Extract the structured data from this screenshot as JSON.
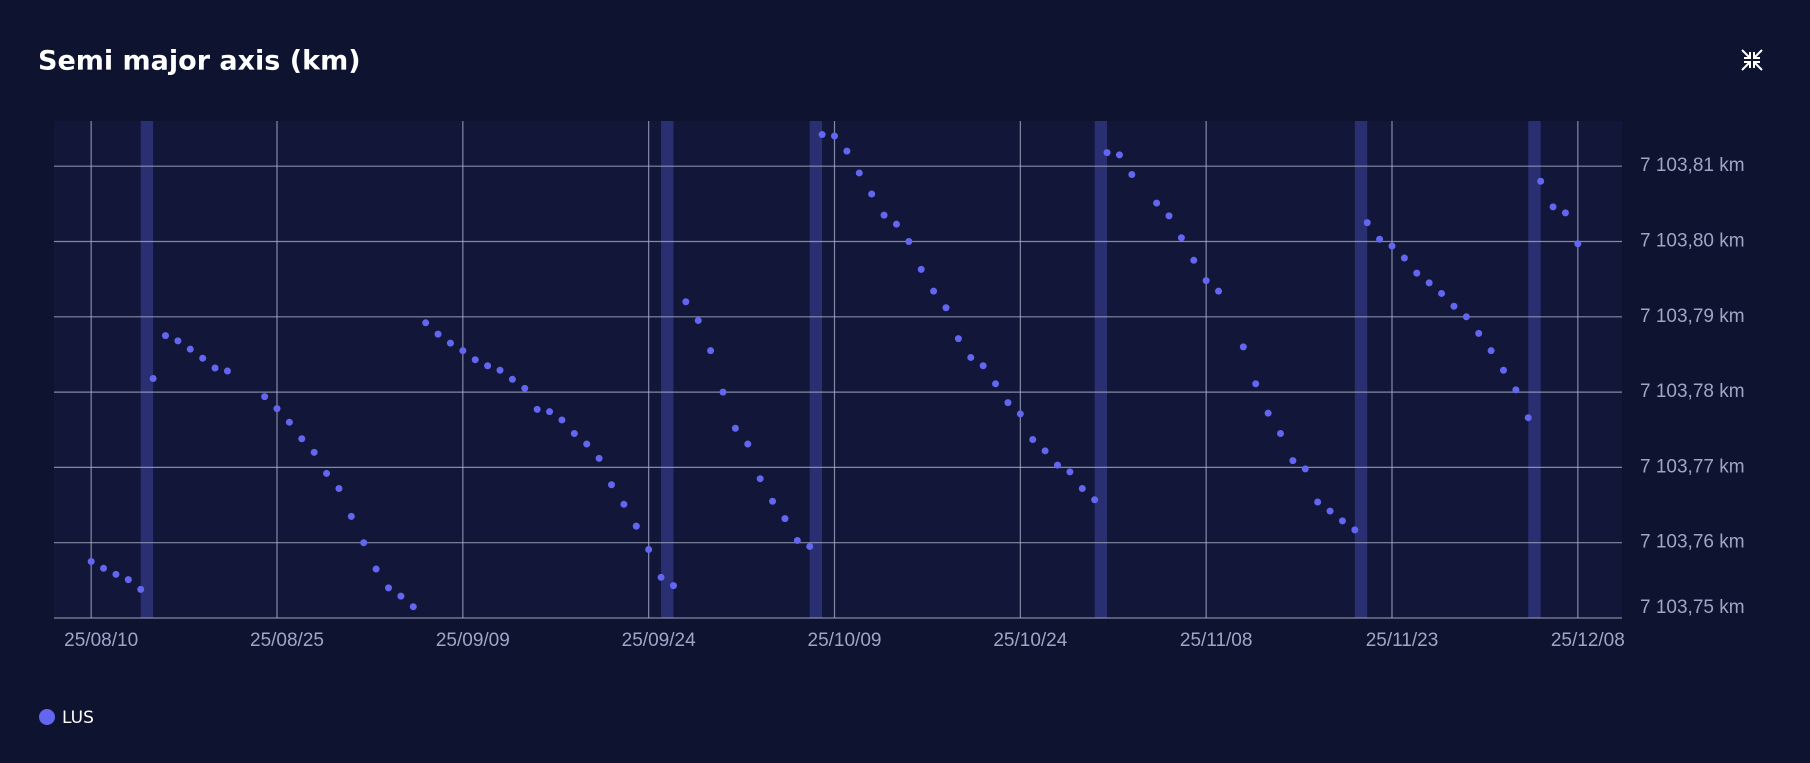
{
  "chart_data": {
    "type": "scatter",
    "title": "Semi major axis (km)",
    "xlim": [
      "25/08/07",
      "25/12/11"
    ],
    "xticks": [
      "25/08/10",
      "25/08/25",
      "25/09/09",
      "25/09/24",
      "25/10/09",
      "25/10/24",
      "25/11/08",
      "25/11/23",
      "25/12/08"
    ],
    "ylim": [
      7103.75,
      7103.816
    ],
    "yticks": [
      {
        "value": 7103.75,
        "label": "7 103,75 km"
      },
      {
        "value": 7103.76,
        "label": "7 103,76 km"
      },
      {
        "value": 7103.77,
        "label": "7 103,77 km"
      },
      {
        "value": 7103.78,
        "label": "7 103,78 km"
      },
      {
        "value": 7103.79,
        "label": "7 103,79 km"
      },
      {
        "value": 7103.8,
        "label": "7 103,80 km"
      },
      {
        "value": 7103.81,
        "label": "7 103,81 km"
      }
    ],
    "grid": true,
    "bands": [
      [
        "25/08/14",
        "25/08/15"
      ],
      [
        "25/09/25",
        "25/09/26"
      ],
      [
        "25/10/07",
        "25/10/08"
      ],
      [
        "25/10/30",
        "25/10/31"
      ],
      [
        "25/11/20",
        "25/11/21"
      ],
      [
        "25/12/04",
        "25/12/05"
      ]
    ],
    "band_color": "#3a3f9a",
    "x": [
      "25/08/10",
      "25/08/11",
      "25/08/12",
      "25/08/13",
      "25/08/14",
      "25/08/15",
      "25/08/16",
      "25/08/17",
      "25/08/18",
      "25/08/19",
      "25/08/20",
      "25/08/21",
      "25/08/24",
      "25/08/25",
      "25/08/26",
      "25/08/27",
      "25/08/28",
      "25/08/29",
      "25/08/30",
      "25/08/31",
      "25/09/01",
      "25/09/02",
      "25/09/03",
      "25/09/04",
      "25/09/05",
      "25/09/06",
      "25/09/07",
      "25/09/08",
      "25/09/09",
      "25/09/10",
      "25/09/11",
      "25/09/12",
      "25/09/13",
      "25/09/14",
      "25/09/15",
      "25/09/16",
      "25/09/17",
      "25/09/18",
      "25/09/19",
      "25/09/20",
      "25/09/21",
      "25/09/22",
      "25/09/23",
      "25/09/24",
      "25/09/25",
      "25/09/26",
      "25/09/27",
      "25/09/28",
      "25/09/29",
      "25/09/30",
      "25/10/01",
      "25/10/02",
      "25/10/03",
      "25/10/04",
      "25/10/05",
      "25/10/06",
      "25/10/07",
      "25/10/08",
      "25/10/09",
      "25/10/10",
      "25/10/11",
      "25/10/12",
      "25/10/13",
      "25/10/14",
      "25/10/15",
      "25/10/16",
      "25/10/17",
      "25/10/18",
      "25/10/19",
      "25/10/20",
      "25/10/21",
      "25/10/22",
      "25/10/23",
      "25/10/24",
      "25/10/25",
      "25/10/26",
      "25/10/27",
      "25/10/28",
      "25/10/29",
      "25/10/30",
      "25/10/31",
      "25/11/01",
      "25/11/02",
      "25/11/04",
      "25/11/05",
      "25/11/06",
      "25/11/07",
      "25/11/08",
      "25/11/09",
      "25/11/11",
      "25/11/12",
      "25/11/13",
      "25/11/14",
      "25/11/15",
      "25/11/16",
      "25/11/17",
      "25/11/18",
      "25/11/19",
      "25/11/20",
      "25/11/21",
      "25/11/22",
      "25/11/23",
      "25/11/24",
      "25/11/25",
      "25/11/26",
      "25/11/27",
      "25/11/28",
      "25/11/29",
      "25/11/30",
      "25/12/01",
      "25/12/02",
      "25/12/03",
      "25/12/04",
      "25/12/05",
      "25/12/06",
      "25/12/07",
      "25/12/08"
    ],
    "series": [
      {
        "name": "LUS",
        "color": "#6366f1",
        "values": [
          7103.7575,
          7103.7566,
          7103.7558,
          7103.7551,
          7103.7538,
          7103.7818,
          7103.7875,
          7103.7868,
          7103.7857,
          7103.7845,
          7103.7832,
          7103.7828,
          7103.7794,
          7103.7778,
          7103.776,
          7103.7738,
          7103.772,
          7103.7692,
          7103.7672,
          7103.7635,
          7103.76,
          7103.7565,
          7103.754,
          7103.7529,
          7103.7515,
          7103.7892,
          7103.7877,
          7103.7865,
          7103.7855,
          7103.7843,
          7103.7835,
          7103.7829,
          7103.7817,
          7103.7805,
          7103.7777,
          7103.7774,
          7103.7763,
          7103.7745,
          7103.7731,
          7103.7712,
          7103.7677,
          7103.7651,
          7103.7622,
          7103.7591,
          7103.7554,
          7103.7543,
          7103.792,
          7103.7895,
          7103.7855,
          7103.78,
          7103.7752,
          7103.7731,
          7103.7685,
          7103.7655,
          7103.7632,
          7103.7603,
          7103.7595,
          7103.8142,
          7103.814,
          7103.812,
          7103.8091,
          7103.8063,
          7103.8035,
          7103.8023,
          7103.8,
          7103.7963,
          7103.7934,
          7103.7912,
          7103.7871,
          7103.7846,
          7103.7835,
          7103.7811,
          7103.7786,
          7103.7771,
          7103.7737,
          7103.7722,
          7103.7703,
          7103.7694,
          7103.7672,
          7103.7657,
          7103.8118,
          7103.8115,
          7103.8089,
          7103.8051,
          7103.8034,
          7103.8005,
          7103.7975,
          7103.7948,
          7103.7934,
          7103.786,
          7103.7811,
          7103.7772,
          7103.7745,
          7103.7709,
          7103.7698,
          7103.7654,
          7103.7642,
          7103.7629,
          7103.7617,
          7103.8025,
          7103.8003,
          7103.7994,
          7103.7978,
          7103.7958,
          7103.7945,
          7103.7931,
          7103.7914,
          7103.79,
          7103.7878,
          7103.7855,
          7103.7829,
          7103.7803,
          7103.7766,
          7103.808,
          7103.8046,
          7103.8038,
          7103.7997
        ]
      }
    ]
  }
}
